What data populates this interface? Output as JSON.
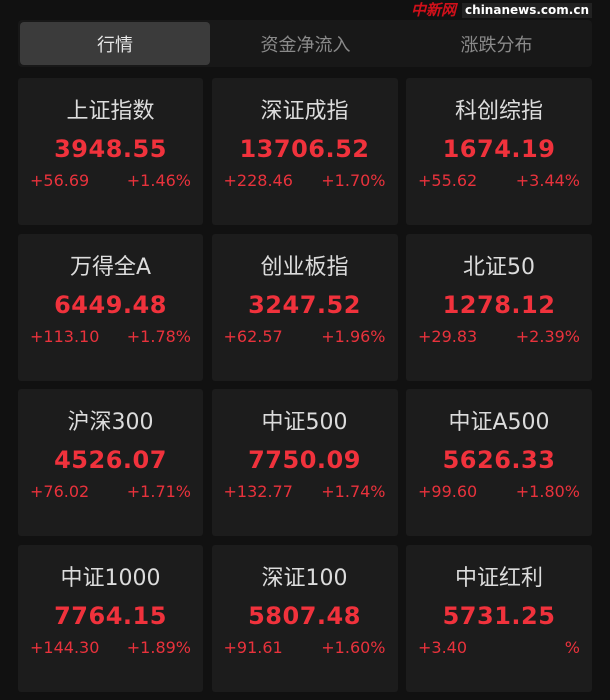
{
  "tabs": [
    {
      "label": "行情",
      "active": true
    },
    {
      "label": "资金净流入",
      "active": false
    },
    {
      "label": "涨跌分布",
      "active": false
    }
  ],
  "indices": [
    {
      "name": "上证指数",
      "value": "3948.55",
      "change": "+56.69",
      "pct": "+1.46%"
    },
    {
      "name": "深证成指",
      "value": "13706.52",
      "change": "+228.46",
      "pct": "+1.70%"
    },
    {
      "name": "科创综指",
      "value": "1674.19",
      "change": "+55.62",
      "pct": "+3.44%"
    },
    {
      "name": "万得全A",
      "value": "6449.48",
      "change": "+113.10",
      "pct": "+1.78%"
    },
    {
      "name": "创业板指",
      "value": "3247.52",
      "change": "+62.57",
      "pct": "+1.96%"
    },
    {
      "name": "北证50",
      "value": "1278.12",
      "change": "+29.83",
      "pct": "+2.39%"
    },
    {
      "name": "沪深300",
      "value": "4526.07",
      "change": "+76.02",
      "pct": "+1.71%"
    },
    {
      "name": "中证500",
      "value": "7750.09",
      "change": "+132.77",
      "pct": "+1.74%"
    },
    {
      "name": "中证A500",
      "value": "5626.33",
      "change": "+99.60",
      "pct": "+1.80%"
    },
    {
      "name": "中证1000",
      "value": "7764.15",
      "change": "+144.30",
      "pct": "+1.89%"
    },
    {
      "name": "深证100",
      "value": "5807.48",
      "change": "+91.61",
      "pct": "+1.60%"
    },
    {
      "name": "中证红利",
      "value": "5731.25",
      "change": "+3.40",
      "pct": "%"
    }
  ],
  "colors": {
    "up": "#f0323c",
    "background": "#111111",
    "card": "#1c1c1c"
  },
  "watermark": {
    "logo": "中新网",
    "url": "chinanews.com.cn"
  }
}
